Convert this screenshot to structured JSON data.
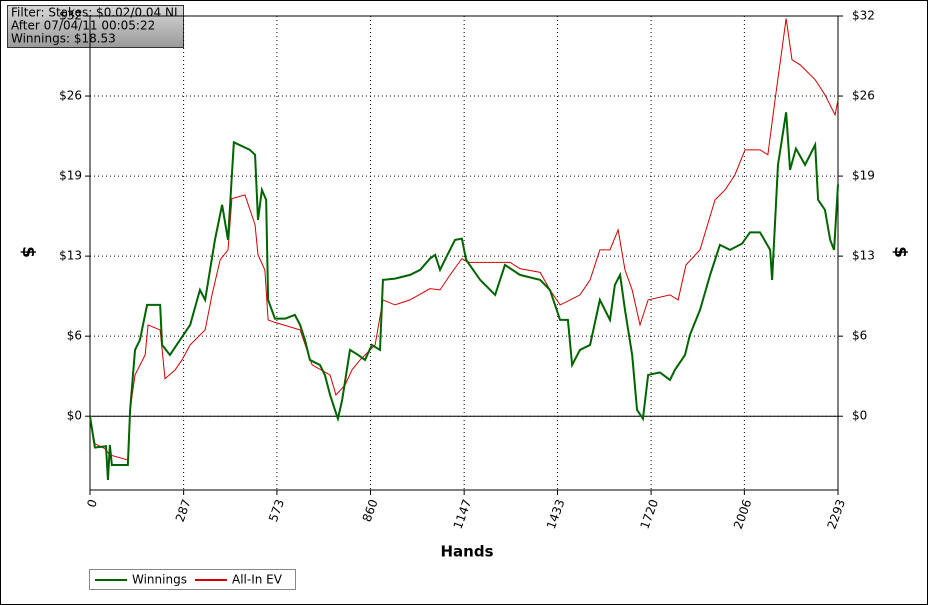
{
  "filter": [
    "Filter: Stakes: $0.02/0.04 NL",
    "After 07/04/11 00:05:22",
    "Winnings: $18.53"
  ],
  "chart_data": {
    "type": "line",
    "x_label": "Hands",
    "y_label": "$",
    "y2_label": "$",
    "xlim": [
      0,
      2293
    ],
    "xticks": [
      0,
      287,
      573,
      860,
      1147,
      1433,
      1720,
      2006,
      2293
    ],
    "ylim": [
      -5.9,
      32
    ],
    "yticks": [
      {
        "value": 0,
        "label": "$0"
      },
      {
        "value": 6.4,
        "label": "$6"
      },
      {
        "value": 12.8,
        "label": "$13"
      },
      {
        "value": 19.2,
        "label": "$19"
      },
      {
        "value": 25.6,
        "label": "$26"
      },
      {
        "value": 32,
        "label": "$32"
      }
    ],
    "grid": true,
    "legend": "bottom-left",
    "series": [
      {
        "name": "Winnings",
        "color": "#006400",
        "x": [
          0,
          15,
          49,
          55,
          61,
          67,
          116,
          123,
          138,
          153,
          175,
          215,
          221,
          245,
          276,
          307,
          337,
          353,
          368,
          383,
          405,
          423,
          441,
          490,
          506,
          515,
          527,
          540,
          546,
          567,
          598,
          628,
          644,
          659,
          674,
          705,
          720,
          736,
          751,
          760,
          773,
          797,
          822,
          843,
          864,
          889,
          898,
          935,
          981,
          1012,
          1042,
          1058,
          1073,
          1088,
          1119,
          1140,
          1153,
          1196,
          1242,
          1272,
          1318,
          1380,
          1410,
          1441,
          1465,
          1478,
          1502,
          1533,
          1563,
          1594,
          1609,
          1625,
          1640,
          1662,
          1677,
          1695,
          1711,
          1747,
          1778,
          1793,
          1824,
          1839,
          1870,
          1901,
          1931,
          1962,
          1999,
          2023,
          2054,
          2085,
          2091,
          2109,
          2134,
          2146,
          2164,
          2192,
          2223,
          2232,
          2253,
          2269,
          2281,
          2293
        ],
        "values": [
          0,
          -2.5,
          -2.4,
          -5.1,
          -2.3,
          -3.9,
          -3.9,
          0.5,
          5.3,
          6.1,
          8.9,
          8.9,
          5.7,
          4.9,
          6.1,
          7.3,
          10.1,
          9.3,
          11.7,
          14.1,
          16.9,
          14.1,
          21.9,
          21.3,
          20.9,
          15.7,
          18.1,
          17.3,
          9.3,
          7.8,
          7.8,
          8.1,
          7.3,
          6.1,
          4.5,
          4.1,
          3.3,
          1.7,
          0.5,
          -0.2,
          1.3,
          5.3,
          4.9,
          4.5,
          5.7,
          5.3,
          10.9,
          11.0,
          11.3,
          11.7,
          12.6,
          12.9,
          11.7,
          12.5,
          14.1,
          14.2,
          12.5,
          10.9,
          9.7,
          12.1,
          11.3,
          10.9,
          10.1,
          7.7,
          7.7,
          4.1,
          5.3,
          5.7,
          9.3,
          7.7,
          10.5,
          11.3,
          8.5,
          4.9,
          0.5,
          -0.2,
          3.3,
          3.5,
          2.9,
          3.7,
          4.9,
          6.5,
          8.5,
          11.3,
          13.7,
          13.3,
          13.8,
          14.7,
          14.7,
          13.3,
          10.9,
          20.1,
          24.3,
          19.7,
          21.4,
          20.1,
          21.7,
          17.3,
          16.5,
          14.1,
          13.3,
          18.53
        ]
      },
      {
        "name": "All-In EV",
        "color": "#d40000",
        "x": [
          0,
          15,
          46,
          61,
          116,
          123,
          138,
          169,
          178,
          215,
          230,
          261,
          282,
          307,
          353,
          374,
          399,
          423,
          435,
          475,
          506,
          515,
          536,
          546,
          567,
          644,
          681,
          736,
          754,
          782,
          803,
          828,
          874,
          898,
          935,
          981,
          1042,
          1073,
          1104,
          1140,
          1159,
          1226,
          1288,
          1318,
          1380,
          1410,
          1441,
          1472,
          1502,
          1533,
          1563,
          1594,
          1619,
          1640,
          1662,
          1686,
          1711,
          1778,
          1803,
          1827,
          1870,
          1916,
          1947,
          1977,
          2008,
          2054,
          2078,
          2100,
          2121,
          2134,
          2152,
          2177,
          2223,
          2253,
          2284,
          2293
        ],
        "values": [
          0,
          -2.2,
          -2.6,
          -3.1,
          -3.5,
          0.5,
          3.3,
          4.9,
          7.3,
          6.9,
          3.0,
          3.7,
          4.5,
          5.7,
          6.9,
          9.7,
          12.5,
          13.3,
          17.4,
          17.7,
          15.3,
          12.9,
          11.7,
          7.7,
          7.5,
          6.9,
          4.1,
          3.3,
          1.7,
          2.5,
          3.7,
          4.5,
          5.7,
          9.3,
          8.9,
          9.3,
          10.2,
          10.1,
          11.3,
          12.6,
          12.3,
          12.3,
          12.3,
          11.8,
          11.5,
          10.1,
          8.9,
          9.3,
          9.7,
          10.9,
          13.3,
          13.3,
          14.9,
          11.7,
          10.1,
          7.3,
          9.3,
          9.7,
          9.3,
          12.1,
          13.3,
          17.3,
          18.1,
          19.3,
          21.3,
          21.3,
          20.9,
          25.3,
          29.3,
          31.8,
          28.5,
          28.1,
          26.9,
          25.7,
          24.1,
          25.3
        ]
      }
    ]
  }
}
